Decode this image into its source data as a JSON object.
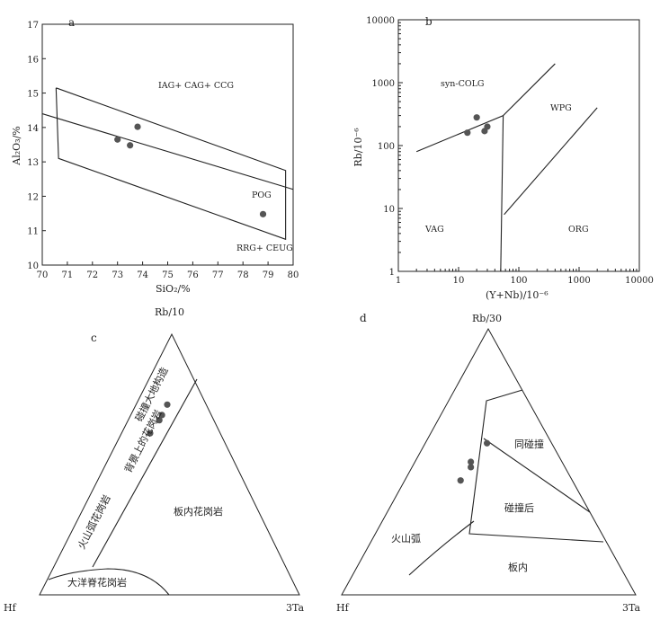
{
  "chart_data": [
    {
      "panel": "a",
      "type": "scatter",
      "xlabel": "SiO₂/%",
      "ylabel": "Al₂O₃/%",
      "xlim": [
        70,
        80
      ],
      "ylim": [
        10,
        17
      ],
      "x_ticks": [
        "70",
        "71",
        "72",
        "73",
        "74",
        "75",
        "76",
        "77",
        "78",
        "79",
        "80"
      ],
      "y_ticks": [
        "10",
        "11",
        "12",
        "13",
        "14",
        "15",
        "16",
        "17"
      ],
      "fields": [
        "IAG+ CAG+ CCG",
        "POG",
        "RRG+ CEUG"
      ],
      "points": [
        {
          "x": 73.0,
          "y": 13.65
        },
        {
          "x": 73.5,
          "y": 13.48
        },
        {
          "x": 73.8,
          "y": 14.02
        },
        {
          "x": 78.8,
          "y": 11.48
        }
      ],
      "boundaries": [
        [
          [
            70.55,
            15.15
          ],
          [
            79.7,
            12.75
          ],
          [
            79.7,
            10.75
          ],
          [
            70.65,
            13.1
          ],
          [
            70.55,
            15.15
          ]
        ],
        [
          [
            70,
            14.4
          ],
          [
            80,
            12.2
          ]
        ]
      ]
    },
    {
      "panel": "b",
      "type": "scatter",
      "scale": "log-log",
      "xlabel": "(Y+Nb)/10⁻⁶",
      "ylabel": "Rb/10⁻⁶",
      "xlim": [
        1,
        10000
      ],
      "ylim": [
        1,
        10000
      ],
      "x_ticks": [
        "1",
        "10",
        "100",
        "1000",
        "10000"
      ],
      "y_ticks": [
        "1",
        "10",
        "100",
        "1000",
        "10000"
      ],
      "fields": [
        "syn-COLG",
        "WPG",
        "VAG",
        "ORG"
      ],
      "points": [
        {
          "x": 14,
          "y": 160
        },
        {
          "x": 20,
          "y": 280
        },
        {
          "x": 27,
          "y": 170
        },
        {
          "x": 30,
          "y": 200
        }
      ],
      "boundaries": [
        [
          [
            2,
            80
          ],
          [
            55,
            300
          ],
          [
            400,
            2000
          ]
        ],
        [
          [
            55,
            300
          ],
          [
            50,
            1
          ]
        ],
        [
          [
            57,
            8
          ],
          [
            2000,
            400
          ]
        ]
      ]
    },
    {
      "panel": "c",
      "type": "ternary",
      "apices": {
        "top": "Rb/10",
        "left": "Hf",
        "right": "3Ta"
      },
      "fields": [
        "碰撞大地构造",
        "背景上的花岗岩",
        "板内花岗岩",
        "火山弧花岗岩",
        "大洋脊花岗岩"
      ],
      "points": [
        {
          "top": 0.73,
          "left": 0.15,
          "right": 0.12
        },
        {
          "top": 0.69,
          "left": 0.19,
          "right": 0.12
        },
        {
          "top": 0.67,
          "left": 0.21,
          "right": 0.12
        },
        {
          "top": 0.62,
          "left": 0.27,
          "right": 0.11
        }
      ]
    },
    {
      "panel": "d",
      "type": "ternary",
      "apices": {
        "top": "Rb/30",
        "left": "Hf",
        "right": "3Ta"
      },
      "fields": [
        "同碰撞",
        "碰撞后",
        "火山弧",
        "板内"
      ],
      "points": [
        {
          "top": 0.57,
          "left": 0.22,
          "right": 0.21
        },
        {
          "top": 0.5,
          "left": 0.31,
          "right": 0.19
        },
        {
          "top": 0.48,
          "left": 0.32,
          "right": 0.2
        },
        {
          "top": 0.43,
          "left": 0.38,
          "right": 0.19
        }
      ]
    }
  ]
}
